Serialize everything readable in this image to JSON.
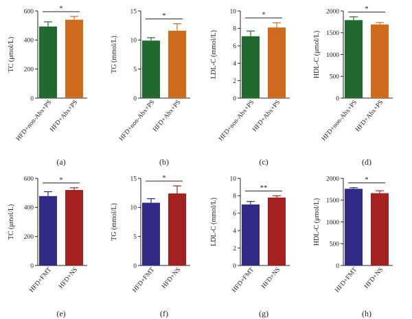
{
  "colors": {
    "green": "#1f6a2c",
    "orange": "#d06a1c",
    "navy": "#2e2a86",
    "red": "#a3221f",
    "axis": "#222222"
  },
  "chart_data": [
    {
      "type": "bar",
      "panel_label": "(a)",
      "ylabel": "TC (μmol/L)",
      "ylim": [
        0,
        600
      ],
      "yticks": [
        0,
        200,
        400,
        600
      ],
      "categories": [
        "HFD+non-Abx+PS",
        "HFD+Abx+PS"
      ],
      "values": [
        493,
        540
      ],
      "errors": [
        32,
        22
      ],
      "bar_colors": [
        "green",
        "orange"
      ],
      "significance": "*"
    },
    {
      "type": "bar",
      "panel_label": "(b)",
      "ylabel": "TG (mmol/L)",
      "ylim": [
        0,
        15
      ],
      "yticks": [
        0,
        5,
        10,
        15
      ],
      "categories": [
        "HFD+non-Abx+PS",
        "HFD+Abx+PS"
      ],
      "values": [
        9.9,
        11.6
      ],
      "errors": [
        0.5,
        1.2
      ],
      "bar_colors": [
        "green",
        "orange"
      ],
      "significance": "*"
    },
    {
      "type": "bar",
      "panel_label": "(c)",
      "ylabel": "LDL-C (mmol/L)",
      "ylim": [
        0,
        10
      ],
      "yticks": [
        0,
        2,
        4,
        6,
        8,
        10
      ],
      "categories": [
        "HFD+non-Abx+PS",
        "HFD+Abx+PS"
      ],
      "values": [
        7.1,
        8.1
      ],
      "errors": [
        0.6,
        0.55
      ],
      "bar_colors": [
        "green",
        "orange"
      ],
      "significance": "*"
    },
    {
      "type": "bar",
      "panel_label": "(d)",
      "ylabel": "HDL-C (μmol/L)",
      "ylim": [
        0,
        2000
      ],
      "yticks": [
        0,
        500,
        1000,
        1500,
        2000
      ],
      "categories": [
        "HFD+non-Abx+PS",
        "HFD+Abx+PS"
      ],
      "values": [
        1790,
        1690
      ],
      "errors": [
        75,
        45
      ],
      "bar_colors": [
        "green",
        "orange"
      ],
      "significance": "*"
    },
    {
      "type": "bar",
      "panel_label": "(e)",
      "ylabel": "TC (μmol/L)",
      "ylim": [
        0,
        600
      ],
      "yticks": [
        0,
        200,
        400,
        600
      ],
      "categories": [
        "HFD+FMT",
        "HFD+NS"
      ],
      "values": [
        478,
        520
      ],
      "errors": [
        30,
        15
      ],
      "bar_colors": [
        "navy",
        "red"
      ],
      "significance": "*"
    },
    {
      "type": "bar",
      "panel_label": "(f)",
      "ylabel": "TG (mmol/L)",
      "ylim": [
        0,
        15
      ],
      "yticks": [
        0,
        5,
        10,
        15
      ],
      "categories": [
        "HFD+FMT",
        "HFD+NS"
      ],
      "values": [
        10.8,
        12.4
      ],
      "errors": [
        0.7,
        1.3
      ],
      "bar_colors": [
        "navy",
        "red"
      ],
      "significance": "*"
    },
    {
      "type": "bar",
      "panel_label": "(g)",
      "ylabel": "LDL-C (mmol/L)",
      "ylim": [
        0,
        10
      ],
      "yticks": [
        0,
        2,
        4,
        6,
        8,
        10
      ],
      "categories": [
        "HFD+FMT",
        "HFD+NS"
      ],
      "values": [
        7.0,
        7.8
      ],
      "errors": [
        0.35,
        0.2
      ],
      "bar_colors": [
        "navy",
        "red"
      ],
      "significance": "**"
    },
    {
      "type": "bar",
      "panel_label": "(h)",
      "ylabel": "HDL-C (μmol/L)",
      "ylim": [
        0,
        2000
      ],
      "yticks": [
        0,
        500,
        1000,
        1500,
        2000
      ],
      "categories": [
        "HFD+FMT",
        "HFD+NS"
      ],
      "values": [
        1760,
        1660
      ],
      "errors": [
        25,
        55
      ],
      "bar_colors": [
        "navy",
        "red"
      ],
      "significance": "*"
    }
  ]
}
